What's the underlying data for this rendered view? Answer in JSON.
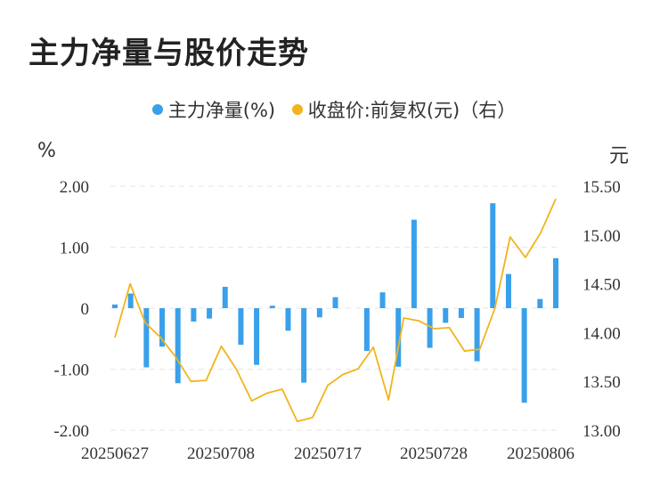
{
  "title": "主力净量与股价走势",
  "legend": [
    {
      "label": "主力净量(%)",
      "color": "#3aa0ea"
    },
    {
      "label": "收盘价:前复权(元)（右）",
      "color": "#f2b41c"
    }
  ],
  "units": {
    "left": "%",
    "right": "元"
  },
  "chart_data": {
    "type": "bar+line",
    "grid": true,
    "legend_position": "top",
    "x_tick_labels": [
      "20250627",
      "20250708",
      "20250717",
      "20250728",
      "20250806"
    ],
    "y_left": {
      "ticks": [
        "2.00",
        "1.00",
        "0",
        "-1.00",
        "-2.00"
      ],
      "range": [
        -2,
        2
      ]
    },
    "y_right": {
      "ticks": [
        "15.50",
        "15.00",
        "14.50",
        "14.00",
        "13.50",
        "13.00"
      ],
      "range": [
        13,
        15.5
      ]
    },
    "series": [
      {
        "name": "主力净量(%)",
        "type": "bar",
        "axis": "left",
        "color": "#3aa0ea",
        "values": [
          0.06,
          0.24,
          -0.97,
          -0.63,
          -1.23,
          -0.22,
          -0.17,
          0.35,
          -0.6,
          -0.93,
          0.04,
          -0.37,
          -1.22,
          -0.15,
          0.18,
          0.0,
          -0.7,
          0.26,
          -0.96,
          1.45,
          -0.65,
          -0.24,
          -0.16,
          -0.87,
          1.72,
          0.56,
          -1.55,
          0.15,
          0.82
        ]
      },
      {
        "name": "收盘价:前复权(元)（右）",
        "type": "line",
        "axis": "right",
        "color": "#f2b41c",
        "values": [
          13.95,
          14.5,
          14.1,
          13.95,
          13.75,
          13.5,
          13.51,
          13.86,
          13.62,
          13.3,
          13.38,
          13.42,
          13.09,
          13.13,
          13.46,
          13.57,
          13.63,
          13.85,
          13.31,
          14.15,
          14.12,
          14.04,
          14.05,
          13.81,
          13.83,
          14.25,
          14.98,
          14.77,
          15.02,
          15.37
        ]
      }
    ]
  }
}
